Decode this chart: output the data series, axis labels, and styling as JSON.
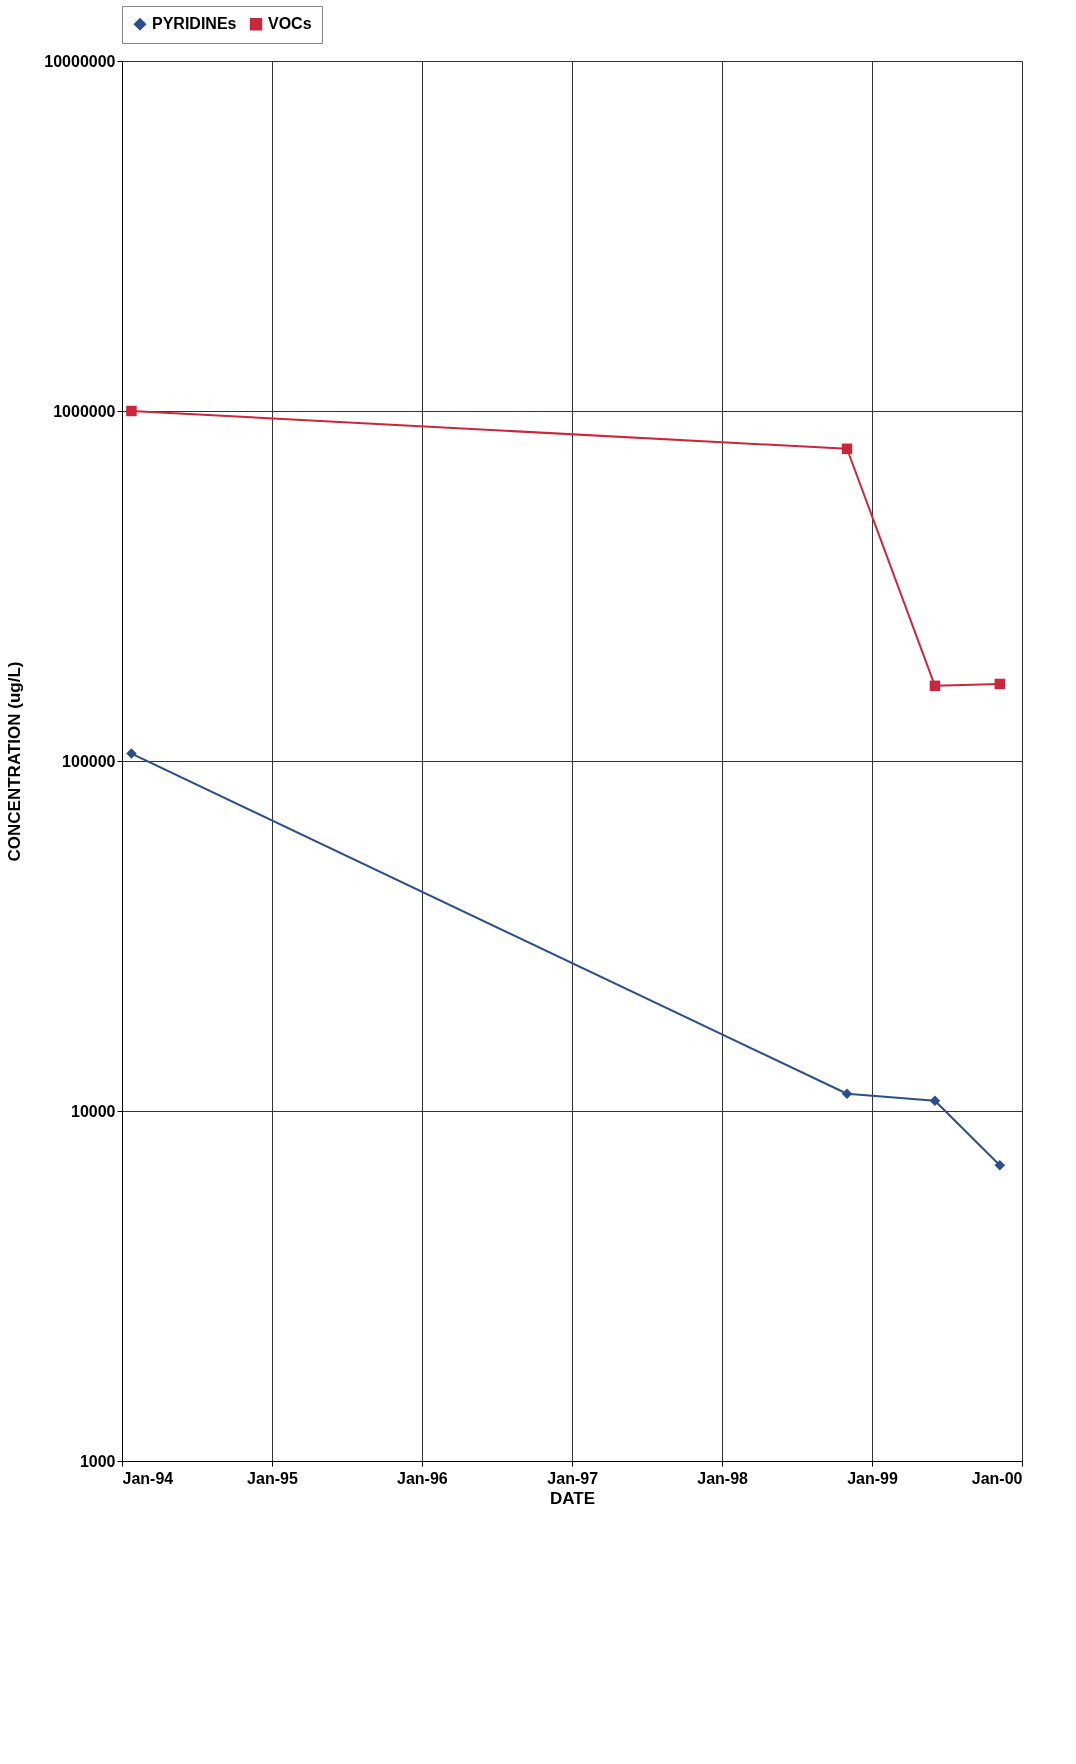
{
  "chart_data": {
    "type": "line",
    "xlabel": "DATE",
    "ylabel": "CONCENTRATION (ug/L)",
    "xlim": [
      "1994-01-01",
      "2000-01-01"
    ],
    "xticks": [
      {
        "value": "1994-01-01",
        "label": "Jan-94"
      },
      {
        "value": "1995-01-01",
        "label": "Jan-95"
      },
      {
        "value": "1996-01-01",
        "label": "Jan-96"
      },
      {
        "value": "1997-01-01",
        "label": "Jan-97"
      },
      {
        "value": "1998-01-01",
        "label": "Jan-98"
      },
      {
        "value": "1999-01-01",
        "label": "Jan-99"
      },
      {
        "value": "2000-01-01",
        "label": "Jan-00"
      }
    ],
    "ylim": [
      1000,
      10000000
    ],
    "yticks": [
      10000000,
      1000000,
      100000,
      10000,
      1000
    ],
    "log": "y",
    "x": [
      "1994-01-24",
      "1998-11-01",
      "1999-06-03",
      "1999-11-08"
    ],
    "series": [
      {
        "name": "PYRIDINEs",
        "color": "#2b4f8a",
        "marker": "diamond",
        "values": [
          105000,
          11200,
          10700,
          7000
        ]
      },
      {
        "name": "VOCs",
        "color": "#c8283c",
        "marker": "square",
        "values": [
          1000000,
          780000,
          164000,
          166000
        ]
      }
    ],
    "grid": true,
    "legend": "top",
    "line_style": "solid"
  }
}
